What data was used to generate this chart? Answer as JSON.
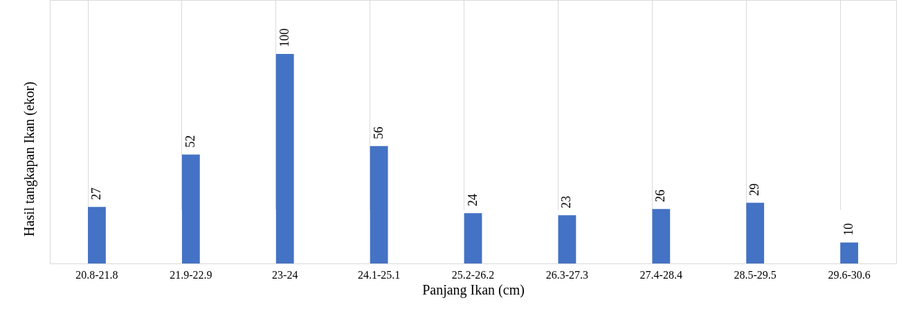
{
  "chart_data": {
    "type": "bar",
    "xlabel": "Panjang Ikan (cm)",
    "ylabel": "Hasil tangkapan  Ikan (ekor)",
    "categories": [
      "20.8-21.8",
      "21.9-22.9",
      "23-24",
      "24.1-25.1",
      "25.2-26.2",
      "26.3-27.3",
      "27.4-28.4",
      "28.5-29.5",
      "29.6-30.6"
    ],
    "values": [
      27,
      52,
      100,
      56,
      24,
      23,
      26,
      29,
      10
    ],
    "color": "#4472c4",
    "data_labels": true,
    "grid": "x",
    "tick_labels": "x"
  }
}
